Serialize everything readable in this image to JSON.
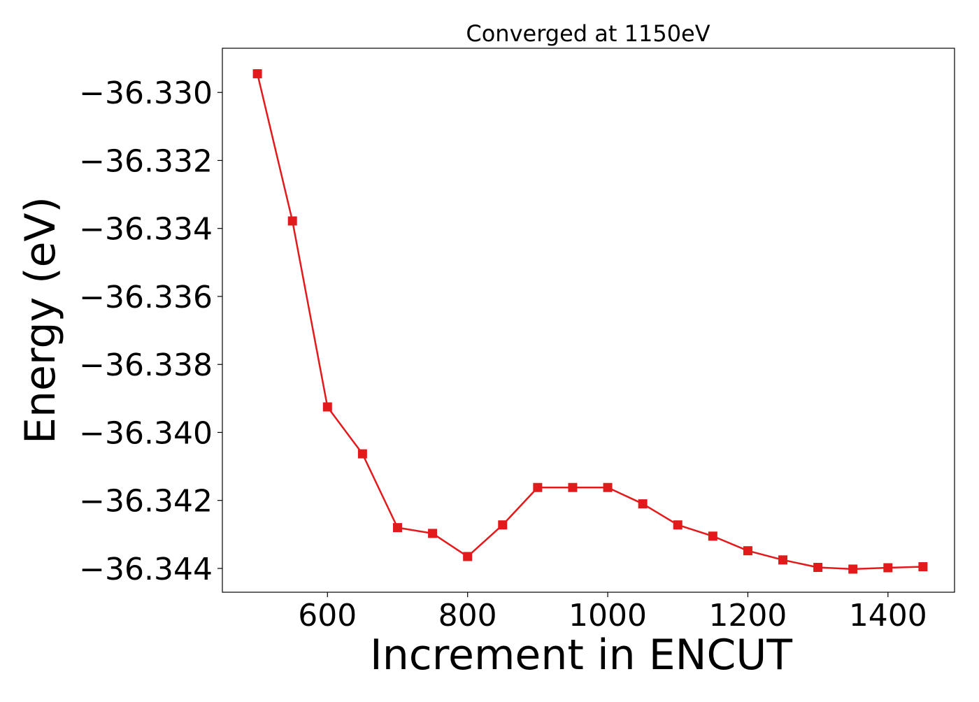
{
  "chart_data": {
    "type": "line",
    "title": "Converged at 1150eV",
    "xlabel": "Increment in ENCUT",
    "ylabel": "Energy (eV)",
    "xlim": [
      450,
      1495
    ],
    "ylim": [
      -36.3447,
      -36.3287
    ],
    "xticks": [
      600,
      800,
      1000,
      1200,
      1400
    ],
    "xtick_labels": [
      "600",
      "800",
      "1000",
      "1200",
      "1400"
    ],
    "yticks": [
      -36.33,
      -36.332,
      -36.334,
      -36.336,
      -36.338,
      -36.34,
      -36.342,
      -36.344
    ],
    "ytick_labels": [
      "−36.330",
      "−36.332",
      "−36.334",
      "−36.336",
      "−36.338",
      "−36.340",
      "−36.342",
      "−36.344"
    ],
    "grid": false,
    "series": [
      {
        "color": "#e31a1c",
        "marker": "square",
        "x": [
          500,
          550,
          600,
          650,
          700,
          750,
          800,
          850,
          900,
          950,
          1000,
          1050,
          1100,
          1150,
          1200,
          1250,
          1300,
          1350,
          1400,
          1450
        ],
        "y": [
          -36.32945,
          -36.33378,
          -36.33925,
          -36.34063,
          -36.3428,
          -36.34297,
          -36.34365,
          -36.34272,
          -36.34162,
          -36.34162,
          -36.34162,
          -36.3421,
          -36.34272,
          -36.34305,
          -36.34348,
          -36.34375,
          -36.34397,
          -36.34402,
          -36.34398,
          -36.34395
        ]
      }
    ]
  }
}
